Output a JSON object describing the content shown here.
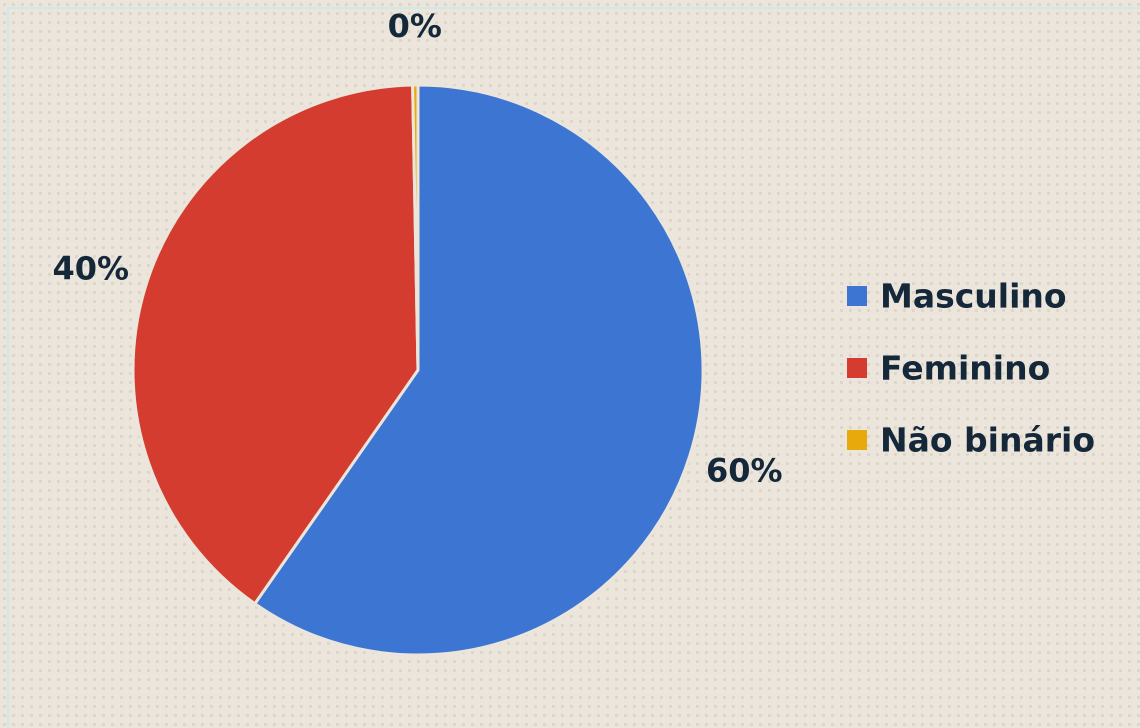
{
  "chart_data": {
    "type": "pie",
    "categories": [
      "Masculino",
      "Feminino",
      "Não binário"
    ],
    "values": [
      59.7,
      40,
      0.3
    ],
    "value_labels": [
      "60%",
      "40%",
      "0%"
    ],
    "colors": [
      "#3c76d2",
      "#d43c2f",
      "#e8a90c"
    ],
    "legend": "right"
  }
}
